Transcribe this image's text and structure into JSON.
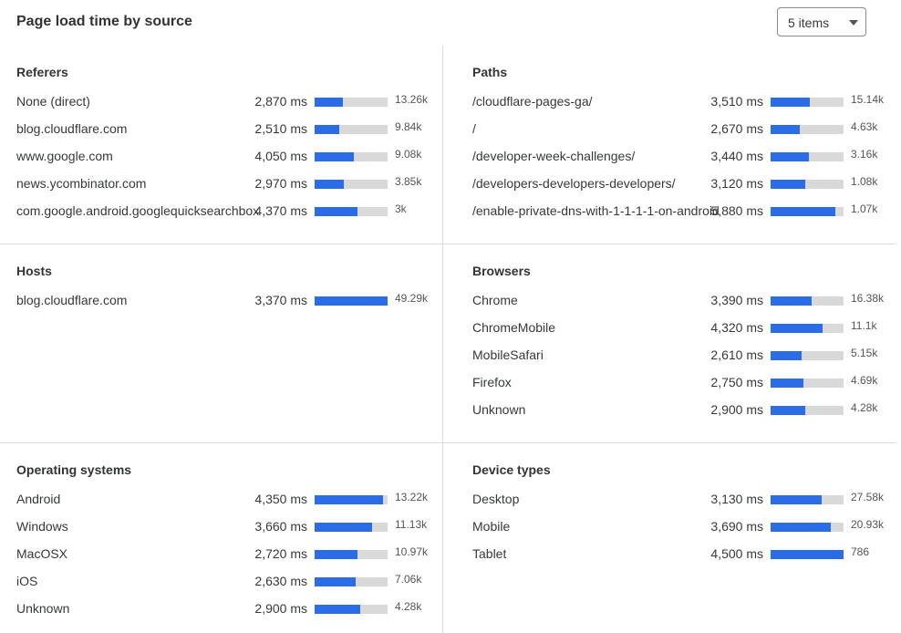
{
  "header": {
    "title": "Page load time by source",
    "dropdown": {
      "selected": "5 items",
      "icon": "caret-down-icon"
    }
  },
  "colors": {
    "bar_fill": "#2b6de8",
    "bar_track": "#d9d9d9"
  },
  "sections": [
    {
      "title": "Referers",
      "rows": [
        {
          "label": "None (direct)",
          "ms": "2,870 ms",
          "fill": 0.39,
          "count": "13.26k"
        },
        {
          "label": "blog.cloudflare.com",
          "ms": "2,510 ms",
          "fill": 0.34,
          "count": "9.84k"
        },
        {
          "label": "www.google.com",
          "ms": "4,050 ms",
          "fill": 0.54,
          "count": "9.08k"
        },
        {
          "label": "news.ycombinator.com",
          "ms": "2,970 ms",
          "fill": 0.4,
          "count": "3.85k"
        },
        {
          "label": "com.google.android.googlequicksearchbox",
          "ms": "4,370 ms",
          "fill": 0.59,
          "count": "3k"
        }
      ]
    },
    {
      "title": "Paths",
      "rows": [
        {
          "label": "/cloudflare-pages-ga/",
          "ms": "3,510 ms",
          "fill": 0.54,
          "count": "15.14k"
        },
        {
          "label": "/",
          "ms": "2,670 ms",
          "fill": 0.4,
          "count": "4.63k"
        },
        {
          "label": "/developer-week-challenges/",
          "ms": "3,440 ms",
          "fill": 0.53,
          "count": "3.16k"
        },
        {
          "label": "/developers-developers-developers/",
          "ms": "3,120 ms",
          "fill": 0.48,
          "count": "1.08k"
        },
        {
          "label": "/enable-private-dns-with-1-1-1-1-on-android",
          "ms": "5,880 ms",
          "fill": 0.89,
          "count": "1.07k"
        }
      ]
    },
    {
      "title": "Hosts",
      "rows": [
        {
          "label": "blog.cloudflare.com",
          "ms": "3,370 ms",
          "fill": 1.0,
          "count": "49.29k"
        }
      ]
    },
    {
      "title": "Browsers",
      "rows": [
        {
          "label": "Chrome",
          "ms": "3,390 ms",
          "fill": 0.56,
          "count": "16.38k"
        },
        {
          "label": "ChromeMobile",
          "ms": "4,320 ms",
          "fill": 0.71,
          "count": "11.1k"
        },
        {
          "label": "MobileSafari",
          "ms": "2,610 ms",
          "fill": 0.43,
          "count": "5.15k"
        },
        {
          "label": "Firefox",
          "ms": "2,750 ms",
          "fill": 0.45,
          "count": "4.69k"
        },
        {
          "label": "Unknown",
          "ms": "2,900 ms",
          "fill": 0.47,
          "count": "4.28k"
        }
      ]
    },
    {
      "title": "Operating systems",
      "rows": [
        {
          "label": "Android",
          "ms": "4,350 ms",
          "fill": 0.94,
          "count": "13.22k"
        },
        {
          "label": "Windows",
          "ms": "3,660 ms",
          "fill": 0.79,
          "count": "11.13k"
        },
        {
          "label": "MacOSX",
          "ms": "2,720 ms",
          "fill": 0.59,
          "count": "10.97k"
        },
        {
          "label": "iOS",
          "ms": "2,630 ms",
          "fill": 0.56,
          "count": "7.06k"
        },
        {
          "label": "Unknown",
          "ms": "2,900 ms",
          "fill": 0.63,
          "count": "4.28k"
        }
      ]
    },
    {
      "title": "Device types",
      "rows": [
        {
          "label": "Desktop",
          "ms": "3,130 ms",
          "fill": 0.7,
          "count": "27.58k"
        },
        {
          "label": "Mobile",
          "ms": "3,690 ms",
          "fill": 0.82,
          "count": "20.93k"
        },
        {
          "label": "Tablet",
          "ms": "4,500 ms",
          "fill": 1.0,
          "count": "786"
        }
      ]
    }
  ]
}
